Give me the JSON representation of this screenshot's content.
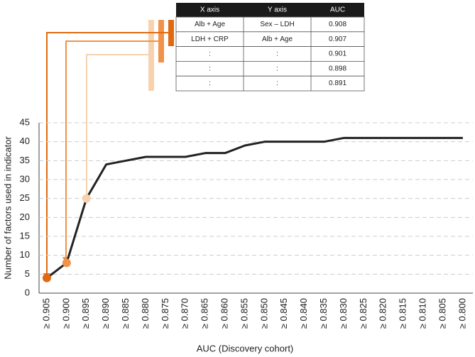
{
  "chart_data": {
    "type": "line",
    "x_label": "AUC (Discovery cohort)",
    "y_label": "Number  of factors used in indicator",
    "categories": [
      "≥ 0.905",
      "≥ 0.900",
      "≥ 0.895",
      "≥ 0.890",
      "≥ 0.885",
      "≥ 0.880",
      "≥ 0.875",
      "≥ 0.870",
      "≥ 0.865",
      "≥ 0.860",
      "≥ 0.855",
      "≥ 0.850",
      "≥ 0.845",
      "≥ 0.840",
      "≥ 0.835",
      "≥ 0.830",
      "≥ 0.825",
      "≥ 0.820",
      "≥ 0.815",
      "≥ 0.810",
      "≥ 0.805",
      "≥ 0.800"
    ],
    "values": [
      4,
      8,
      25,
      34,
      35,
      36,
      36,
      36,
      37,
      37,
      39,
      40,
      40,
      40,
      40,
      41,
      41,
      41,
      41,
      41,
      41,
      41
    ],
    "color": "#222222",
    "highlights": [
      {
        "index": 0,
        "color": "#e06a10"
      },
      {
        "index": 1,
        "color": "#f0924a"
      },
      {
        "index": 2,
        "color": "#f8d2ae"
      }
    ],
    "ylim": [
      0,
      45
    ],
    "yticks": [
      0,
      5,
      10,
      15,
      20,
      25,
      30,
      35,
      40,
      45
    ],
    "grid": true
  },
  "table": {
    "header": [
      "X axis",
      "Y axis",
      "AUC"
    ],
    "rows": [
      [
        "Alb + Age",
        "Sex – LDH",
        0.908
      ],
      [
        "LDH + CRP",
        "Alb + Age",
        0.907
      ],
      [
        ":",
        ":",
        0.901
      ],
      [
        ":",
        ":",
        0.898
      ],
      [
        ":",
        ":",
        0.891
      ]
    ]
  }
}
